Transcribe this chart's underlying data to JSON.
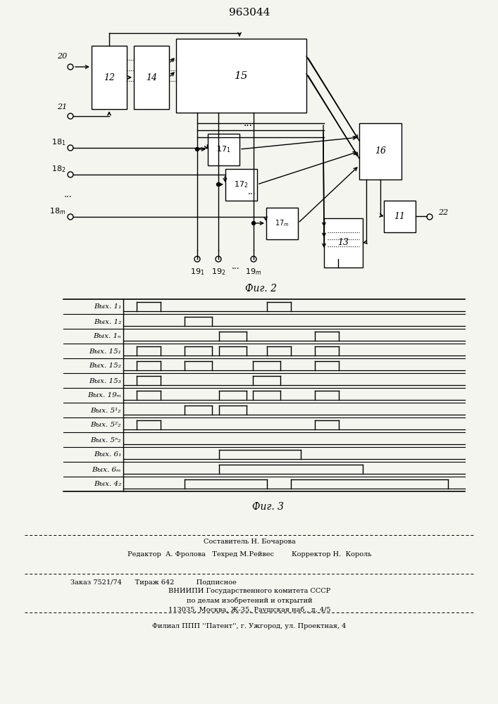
{
  "patent_number": "963044",
  "bg_color": "#f5f5f0",
  "fig2_caption": "Фиг. 2",
  "fig3_caption": "Фиг. 3",
  "timing_labels": [
    "Выx. 1₁",
    "Выx. 1₂",
    "Выx. 1ₙ",
    "Выx. 15₁",
    "Выx. 15₂",
    "Выx. 15₃",
    "Выx. 19ₘ",
    "Выx. 5¹₂",
    "Выx. 5²₂",
    "Выx. 5ⁿ₂",
    "Выx. 6₁",
    "Выx. 6ₘ",
    "Выx. 4₂"
  ],
  "timing_pulses": [
    [
      [
        0.04,
        0.11
      ],
      [
        0.42,
        0.49
      ]
    ],
    [
      [
        0.18,
        0.26
      ]
    ],
    [
      [
        0.28,
        0.36
      ],
      [
        0.56,
        0.63
      ]
    ],
    [
      [
        0.04,
        0.11
      ],
      [
        0.18,
        0.26
      ],
      [
        0.28,
        0.36
      ],
      [
        0.42,
        0.49
      ],
      [
        0.56,
        0.63
      ]
    ],
    [
      [
        0.04,
        0.11
      ],
      [
        0.18,
        0.26
      ],
      [
        0.38,
        0.46
      ],
      [
        0.56,
        0.63
      ]
    ],
    [
      [
        0.04,
        0.11
      ],
      [
        0.38,
        0.46
      ]
    ],
    [
      [
        0.04,
        0.11
      ],
      [
        0.28,
        0.36
      ],
      [
        0.38,
        0.46
      ],
      [
        0.56,
        0.63
      ]
    ],
    [
      [
        0.18,
        0.26
      ],
      [
        0.28,
        0.36
      ]
    ],
    [
      [
        0.04,
        0.11
      ],
      [
        0.56,
        0.63
      ]
    ],
    [],
    [
      [
        0.28,
        0.52
      ]
    ],
    [
      [
        0.28,
        0.7
      ]
    ],
    [
      [
        0.18,
        0.42
      ],
      [
        0.49,
        0.95
      ]
    ]
  ],
  "footer_lines": [
    "Составитель Н. Бочарова",
    "Редактор  А. Фролова   Техред М.Рейвес        Корректор Н.  Король",
    "Заказ 7521/74      Тираж 642          Подписное",
    "ВНИИПИ Государственного комитета СССР",
    "по делам изобретений и открытий",
    "113035, Москва, Ж-35, Раушская наб., д. 4/5",
    "Филиал ППП ''Патент'', г. Ужгород, ул. Проектная, 4"
  ]
}
